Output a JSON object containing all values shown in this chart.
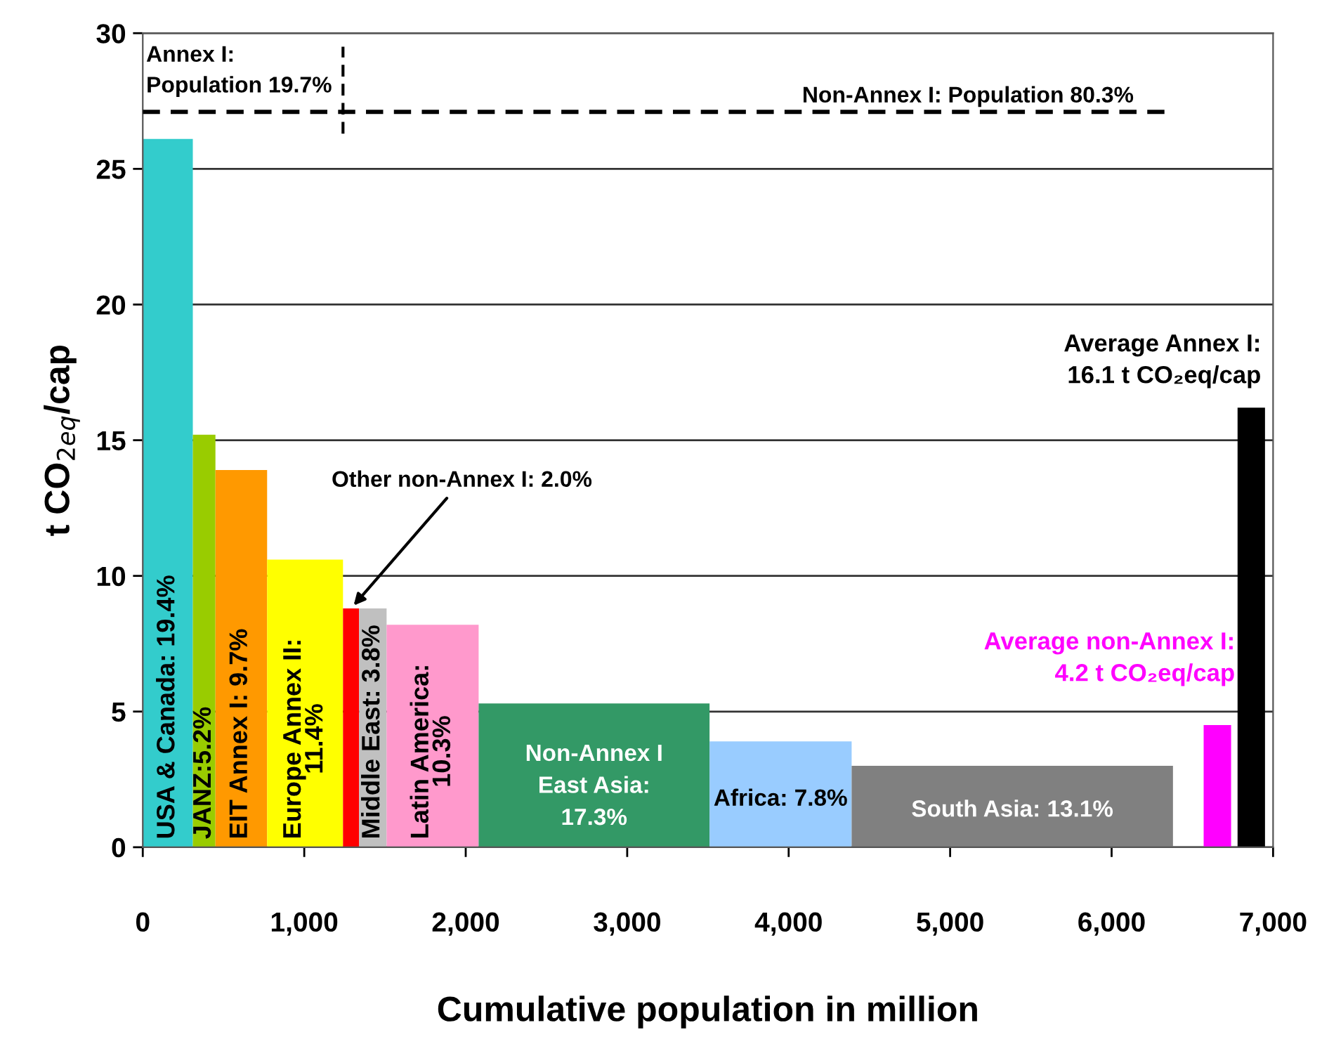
{
  "chart_data": {
    "type": "histogram",
    "xlabel": "Cumulative population in million",
    "ylabel": "t CO$_{2eq}$/cap",
    "bins": [
      0,
      310,
      450,
      770,
      1240,
      1340,
      1510,
      2080,
      3510,
      4390,
      6380,
      6570,
      6740,
      6780,
      6950
    ],
    "values": [
      26.1,
      15.2,
      13.9,
      10.6,
      8.8,
      8.8,
      8.2,
      5.3,
      3.9,
      3.0,
      null,
      4.5,
      null,
      16.2
    ],
    "colors": [
      "#33cccc",
      "#99cc00",
      "#ff9900",
      "#ffff00",
      "#ff0000",
      "#c0c0c0",
      "#ff99cc",
      "#339966",
      "#99ccff",
      "#808080",
      null,
      "#ff00ff",
      null,
      "#000000"
    ],
    "xlim": [
      0,
      7000
    ],
    "xticks": [
      0,
      {
        "value": 1000,
        "label": "1,000"
      },
      {
        "value": 2000,
        "label": "2,000"
      },
      {
        "value": 3000,
        "label": "3,000"
      },
      {
        "value": 4000,
        "label": "4,000"
      },
      {
        "value": 5000,
        "label": "5,000"
      },
      {
        "value": 6000,
        "label": "6,000"
      },
      {
        "value": 7000,
        "label": "7,000"
      }
    ],
    "ylim": [
      0,
      30
    ],
    "yticks": [
      0,
      5,
      10,
      15,
      20,
      25,
      30
    ],
    "grid": "y",
    "ref_lines": [
      {
        "axis": "y",
        "value": 27.1,
        "line_style": "dashed",
        "color": "#000000"
      }
    ],
    "annotations": [
      {
        "text": "USA & Canada: 19.4%",
        "x": 155,
        "y": 0
      },
      {
        "text": "JANZ:5.2%",
        "x": 380,
        "y": 0
      },
      {
        "text": "EIT Annex I: 9.7%",
        "x": 605,
        "y": 0
      },
      {
        "text": "Europe Annex II:\n11.4%",
        "x": 1005,
        "y": 0
      },
      {
        "text": "Middle East: 3.8%",
        "x": 1425,
        "y": 0
      },
      {
        "text": "Latin America:\n10.3%",
        "x": 1795,
        "y": 0
      },
      {
        "text": "Non-Annex I\nEast Asia:\n17.3%",
        "x": 2795,
        "y": 0
      },
      {
        "text": "Africa: 7.8%",
        "x": 3950,
        "y": 0
      },
      {
        "text": "South Asia: 13.1%",
        "x": 5385,
        "y": 0
      },
      {
        "text": "Other non-Annex I: 2.0%",
        "x": 1290,
        "y": 8.8
      },
      {
        "text": "Average Annex I:\n16.1 t CO₂eq/cap",
        "x": 6865,
        "y": 16.2
      },
      {
        "text": "Average non-Annex I:\n4.2 t CO₂eq/cap",
        "x": 6655,
        "y": 4.5
      },
      "Annex I:\nPopulation 19.7%",
      "Non-Annex I: Population 80.3%"
    ]
  }
}
